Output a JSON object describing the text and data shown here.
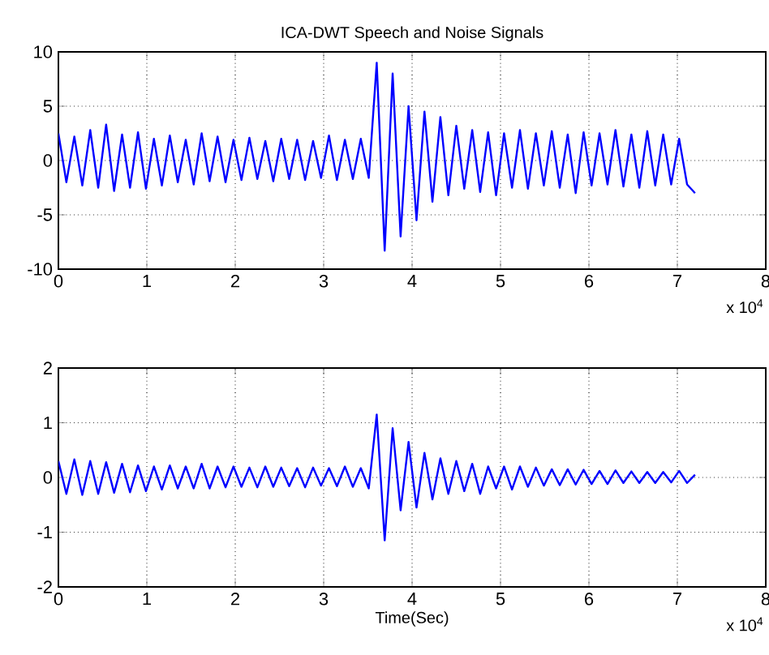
{
  "chart_data": [
    {
      "type": "line",
      "title": "ICA-DWT Speech and Noise Signals",
      "annotations": [
        "x 10$^{4}$"
      ],
      "grid": true,
      "line_style": "solid",
      "marker": "none",
      "xlim": [
        0,
        8
      ],
      "ylim": [
        -10,
        10
      ],
      "xticks": [
        0,
        1,
        2,
        3,
        4,
        5,
        6,
        7,
        8
      ],
      "yticks": [
        -10,
        -5,
        0,
        5,
        10
      ],
      "x": [
        0,
        0.09,
        0.18,
        0.27,
        0.36,
        0.45,
        0.54,
        0.63,
        0.72,
        0.81,
        0.9,
        0.99,
        1.08,
        1.17,
        1.26,
        1.35,
        1.44,
        1.53,
        1.62,
        1.71,
        1.8,
        1.89,
        1.98,
        2.07,
        2.16,
        2.25,
        2.34,
        2.43,
        2.52,
        2.61,
        2.7,
        2.79,
        2.88,
        2.97,
        3.06,
        3.15,
        3.24,
        3.33,
        3.42,
        3.51,
        3.6,
        3.69,
        3.78,
        3.87,
        3.96,
        4.05,
        4.14,
        4.23,
        4.32,
        4.41,
        4.5,
        4.59,
        4.68,
        4.77,
        4.86,
        4.95,
        5.04,
        5.13,
        5.22,
        5.31,
        5.4,
        5.49,
        5.58,
        5.67,
        5.76,
        5.85,
        5.94,
        6.03,
        6.12,
        6.21,
        6.3,
        6.39,
        6.48,
        6.57,
        6.66,
        6.75,
        6.84,
        6.93,
        7.02,
        7.11,
        7.2
      ],
      "series": [
        {
          "color": "#0000ff",
          "values": [
            2.5,
            -2,
            2.2,
            -2.3,
            2.8,
            -2.5,
            3.3,
            -2.8,
            2.4,
            -2.5,
            2.6,
            -2.6,
            2.0,
            -2.3,
            2.3,
            -2.0,
            1.9,
            -2.2,
            2.5,
            -1.9,
            2.2,
            -2.0,
            1.9,
            -1.8,
            2.1,
            -1.7,
            1.8,
            -1.9,
            2.0,
            -1.7,
            1.9,
            -1.8,
            1.8,
            -1.6,
            2.3,
            -1.8,
            1.9,
            -1.7,
            2.0,
            -1.6,
            9.0,
            -8.3,
            8.0,
            -7.0,
            5.0,
            -5.5,
            4.5,
            -3.8,
            4.0,
            -3.2,
            3.2,
            -2.6,
            2.8,
            -2.9,
            2.6,
            -3.2,
            2.5,
            -2.5,
            2.8,
            -2.6,
            2.5,
            -2.3,
            2.7,
            -2.5,
            2.4,
            -3.0,
            2.6,
            -2.3,
            2.5,
            -2.2,
            2.8,
            -2.4,
            2.4,
            -2.5,
            2.7,
            -2.3,
            2.4,
            -2.2,
            2.0,
            -2.2,
            -3.0
          ]
        }
      ]
    },
    {
      "type": "line",
      "xlabel": "Time(Sec)",
      "annotations": [
        "x 10$^{4}$"
      ],
      "grid": true,
      "line_style": "solid",
      "marker": "none",
      "xlim": [
        0,
        8
      ],
      "ylim": [
        -2,
        2
      ],
      "xticks": [
        0,
        1,
        2,
        3,
        4,
        5,
        6,
        7,
        8
      ],
      "yticks": [
        -2,
        -1,
        0,
        1,
        2
      ],
      "x": [
        0,
        0.09,
        0.18,
        0.27,
        0.36,
        0.45,
        0.54,
        0.63,
        0.72,
        0.81,
        0.9,
        0.99,
        1.08,
        1.17,
        1.26,
        1.35,
        1.44,
        1.53,
        1.62,
        1.71,
        1.8,
        1.89,
        1.98,
        2.07,
        2.16,
        2.25,
        2.34,
        2.43,
        2.52,
        2.61,
        2.7,
        2.79,
        2.88,
        2.97,
        3.06,
        3.15,
        3.24,
        3.33,
        3.42,
        3.51,
        3.6,
        3.69,
        3.78,
        3.87,
        3.96,
        4.05,
        4.14,
        4.23,
        4.32,
        4.41,
        4.5,
        4.59,
        4.68,
        4.77,
        4.86,
        4.95,
        5.04,
        5.13,
        5.22,
        5.31,
        5.4,
        5.49,
        5.58,
        5.67,
        5.76,
        5.85,
        5.94,
        6.03,
        6.12,
        6.21,
        6.3,
        6.39,
        6.48,
        6.57,
        6.66,
        6.75,
        6.84,
        6.93,
        7.02,
        7.11,
        7.2
      ],
      "series": [
        {
          "color": "#0000ff",
          "values": [
            0.3,
            -0.3,
            0.33,
            -0.32,
            0.3,
            -0.3,
            0.28,
            -0.28,
            0.25,
            -0.27,
            0.22,
            -0.25,
            0.2,
            -0.22,
            0.22,
            -0.2,
            0.2,
            -0.2,
            0.25,
            -0.2,
            0.2,
            -0.18,
            0.2,
            -0.17,
            0.18,
            -0.18,
            0.2,
            -0.17,
            0.18,
            -0.16,
            0.17,
            -0.18,
            0.18,
            -0.15,
            0.17,
            -0.16,
            0.2,
            -0.17,
            0.17,
            -0.2,
            1.15,
            -1.15,
            0.9,
            -0.6,
            0.65,
            -0.55,
            0.45,
            -0.4,
            0.35,
            -0.3,
            0.3,
            -0.25,
            0.25,
            -0.3,
            0.2,
            -0.2,
            0.2,
            -0.22,
            0.2,
            -0.17,
            0.18,
            -0.15,
            0.15,
            -0.14,
            0.15,
            -0.13,
            0.14,
            -0.12,
            0.12,
            -0.12,
            0.13,
            -0.1,
            0.11,
            -0.1,
            0.1,
            -0.1,
            0.1,
            -0.09,
            0.12,
            -0.1,
            0.05
          ]
        }
      ]
    }
  ]
}
